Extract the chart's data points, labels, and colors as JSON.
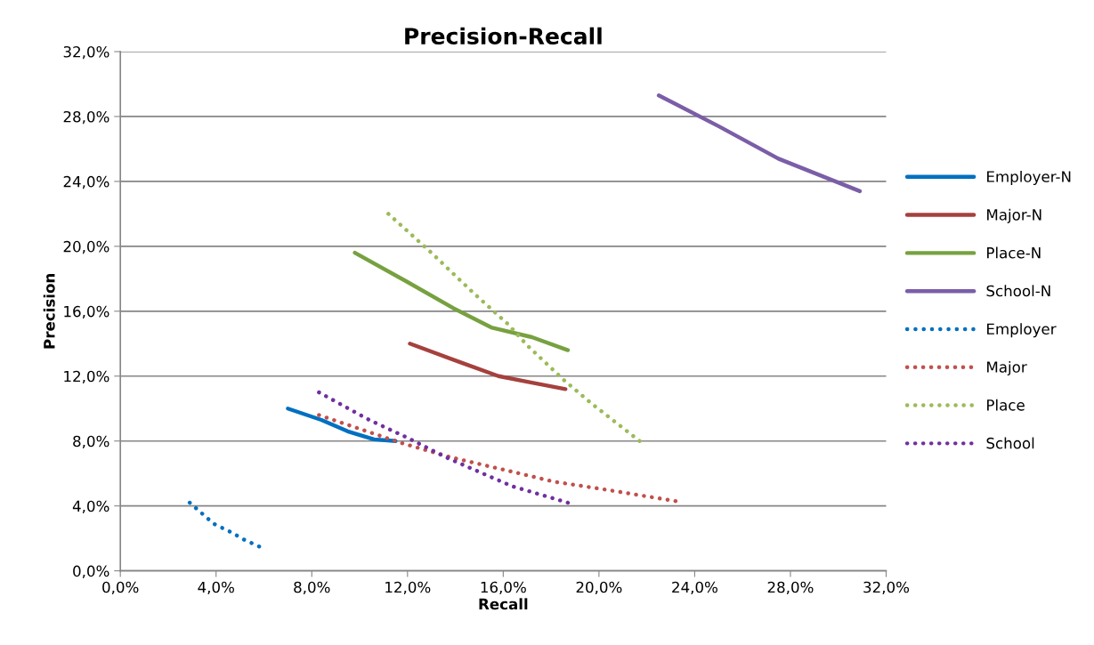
{
  "chart_data": {
    "type": "line",
    "title": "Precision-Recall",
    "xlabel": "Recall",
    "ylabel": "Precision",
    "xlim": [
      0,
      32
    ],
    "ylim": [
      0,
      32
    ],
    "xticks": [
      {
        "value": 0,
        "label": "0,0%"
      },
      {
        "value": 4,
        "label": "4,0%"
      },
      {
        "value": 8,
        "label": "8,0%"
      },
      {
        "value": 12,
        "label": "12,0%"
      },
      {
        "value": 16,
        "label": "16,0%"
      },
      {
        "value": 20,
        "label": "20,0%"
      },
      {
        "value": 24,
        "label": "24,0%"
      },
      {
        "value": 28,
        "label": "28,0%"
      },
      {
        "value": 32,
        "label": "32,0%"
      }
    ],
    "yticks": [
      {
        "value": 0,
        "label": "0,0%"
      },
      {
        "value": 4,
        "label": "4,0%"
      },
      {
        "value": 8,
        "label": "8,0%"
      },
      {
        "value": 12,
        "label": "12,0%"
      },
      {
        "value": 16,
        "label": "16,0%"
      },
      {
        "value": 20,
        "label": "20,0%"
      },
      {
        "value": 24,
        "label": "24,0%"
      },
      {
        "value": 28,
        "label": "28,0%"
      },
      {
        "value": 32,
        "label": "32,0%"
      }
    ],
    "grid": "y",
    "legend": "right",
    "marker": "none",
    "series": [
      {
        "name": "Employer-N",
        "color": "#0070c0",
        "line_style": "solid",
        "x": [
          7.0,
          8.4,
          9.5,
          10.6,
          11.5
        ],
        "values": [
          10.0,
          9.3,
          8.6,
          8.1,
          8.0
        ]
      },
      {
        "name": "Major-N",
        "color": "#a5413d",
        "line_style": "solid",
        "x": [
          12.1,
          14.3,
          15.8,
          17.2,
          18.6
        ],
        "values": [
          14.0,
          12.8,
          12.0,
          11.6,
          11.2
        ]
      },
      {
        "name": "Place-N",
        "color": "#77a140",
        "line_style": "solid",
        "x": [
          9.8,
          12.0,
          13.9,
          15.5,
          17.2,
          18.7
        ],
        "values": [
          19.6,
          17.8,
          16.2,
          15.0,
          14.4,
          13.6
        ]
      },
      {
        "name": "School-N",
        "color": "#7b5ea7",
        "line_style": "solid",
        "x": [
          22.5,
          25.0,
          27.5,
          30.9
        ],
        "values": [
          29.3,
          27.4,
          25.4,
          23.4
        ]
      },
      {
        "name": "Employer",
        "color": "#0070c0",
        "line_style": "dotted",
        "x": [
          2.9,
          3.9,
          4.6,
          5.2,
          5.8
        ],
        "values": [
          4.2,
          2.9,
          2.4,
          1.9,
          1.5
        ]
      },
      {
        "name": "Major",
        "color": "#c0504d",
        "line_style": "dotted",
        "x": [
          8.3,
          11.7,
          13.8,
          16.4,
          18.1,
          20.3,
          23.2
        ],
        "values": [
          9.6,
          7.9,
          7.0,
          6.1,
          5.5,
          5.0,
          4.3
        ]
      },
      {
        "name": "Place",
        "color": "#9bbb59",
        "line_style": "dotted",
        "x": [
          11.2,
          13.0,
          14.7,
          16.2,
          17.0,
          18.5,
          19.7,
          21.7
        ],
        "values": [
          22.0,
          19.6,
          17.2,
          15.2,
          13.9,
          11.8,
          10.3,
          8.0
        ]
      },
      {
        "name": "School",
        "color": "#7030a0",
        "line_style": "dotted",
        "x": [
          8.3,
          10.4,
          12.0,
          13.6,
          15.3,
          16.4,
          17.1,
          18.7
        ],
        "values": [
          11.0,
          9.3,
          8.2,
          7.0,
          5.9,
          5.2,
          4.9,
          4.2
        ]
      }
    ]
  }
}
